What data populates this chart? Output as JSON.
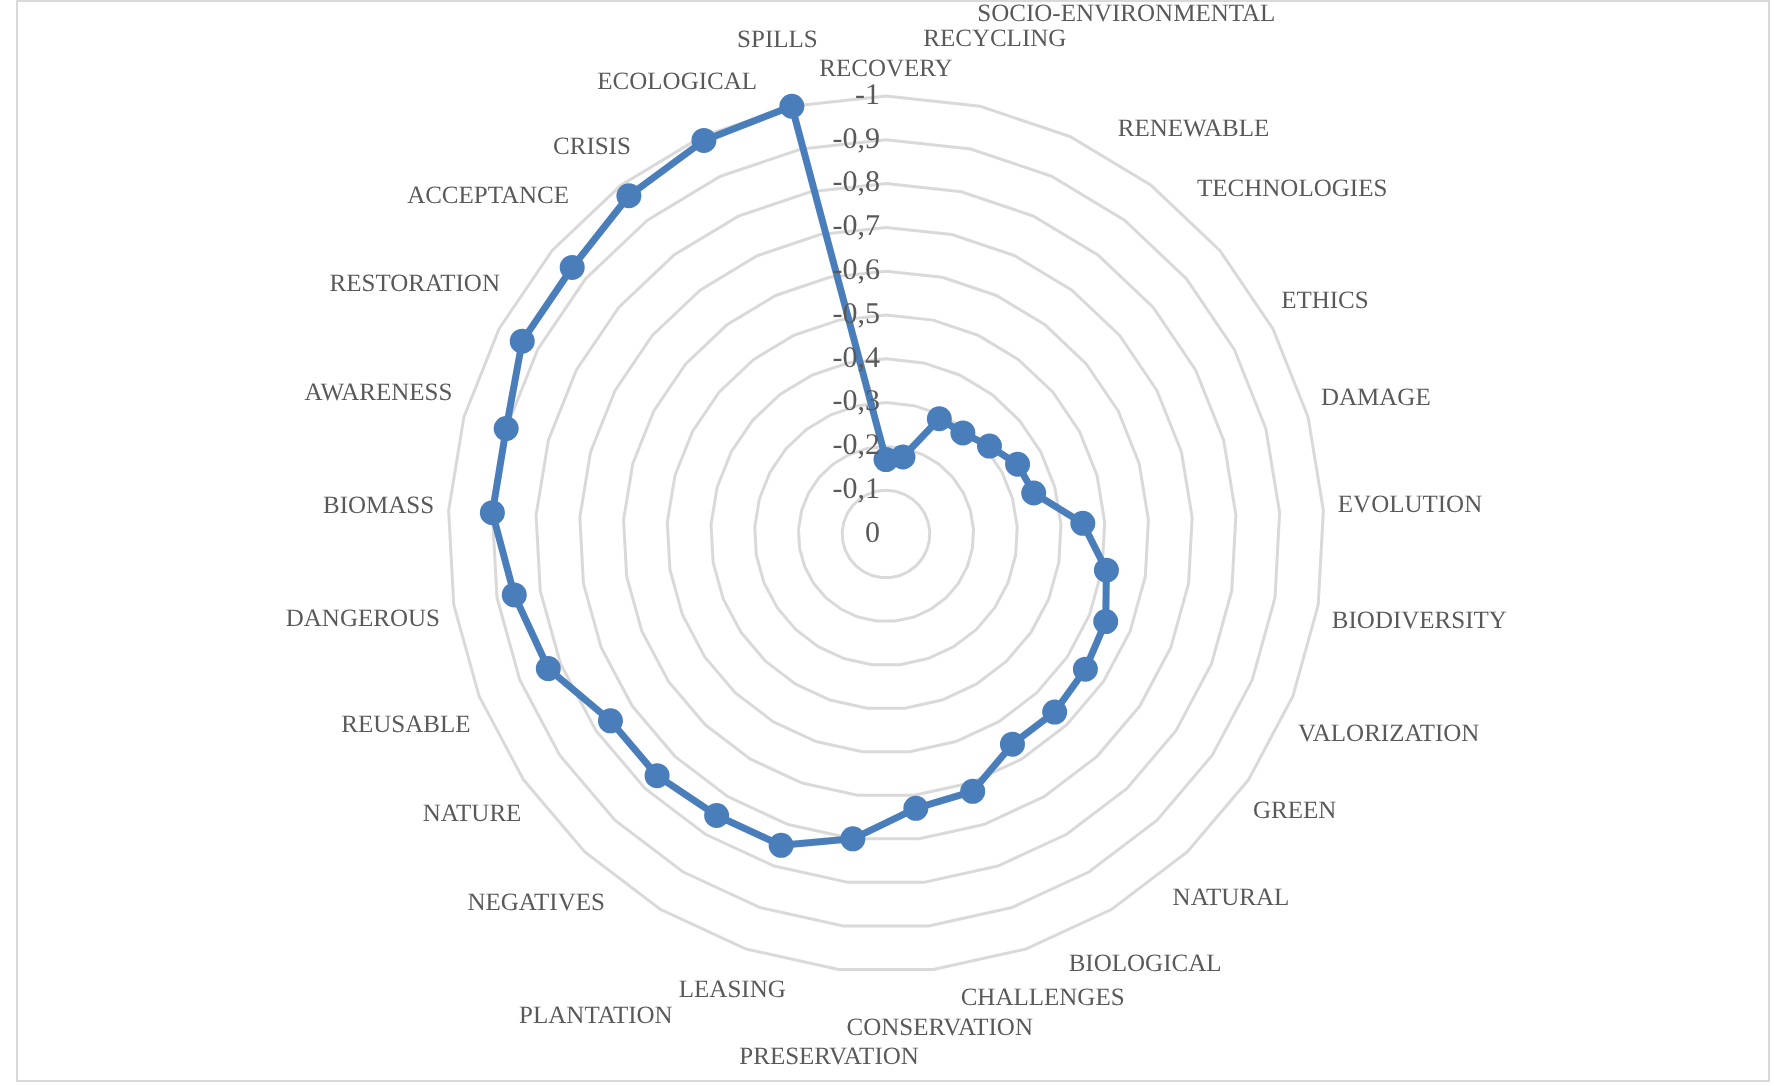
{
  "chart_data": {
    "type": "radar",
    "categories": [
      "RECOVERY",
      "RECYCLING",
      "SOCIO-ENVIRONMENTAL",
      "RENEWABLE",
      "TECHNOLOGIES",
      "ETHICS",
      "DAMAGE",
      "EVOLUTION",
      "BIODIVERSITY",
      "VALORIZATION",
      "GREEN",
      "NATURAL",
      "BIOLOGICAL",
      "CHALLENGES",
      "CONSERVATION",
      "PRESERVATION",
      "LEASING",
      "PLANTATION",
      "NEGATIVES",
      "NATURE",
      "REUSABLE",
      "DANGEROUS",
      "BIOMASS",
      "AWARENESS",
      "RESTORATION",
      "ACCEPTANCE",
      "CRISIS",
      "ECOLOGICAL",
      "SPILLS"
    ],
    "series": [
      {
        "color": "#4a7ebb",
        "values": [
          -0.17,
          -0.18,
          -0.29,
          -0.29,
          -0.31,
          -0.34,
          -0.35,
          -0.45,
          -0.51,
          -0.54,
          -0.55,
          -0.56,
          -0.56,
          -0.62,
          -0.63,
          -0.7,
          -0.75,
          -0.75,
          -0.76,
          -0.76,
          -0.83,
          -0.86,
          -0.9,
          -0.9,
          -0.94,
          -0.94,
          -0.97,
          -0.99,
          -1
        ]
      }
    ],
    "ylim": [
      0,
      -1
    ],
    "yticks": [
      0,
      {
        "value": -0.1,
        "label": "-0,1"
      },
      {
        "value": -0.2,
        "label": "-0,2"
      },
      {
        "value": -0.3,
        "label": "-0,3"
      },
      {
        "value": -0.4,
        "label": "-0,4"
      },
      {
        "value": -0.5,
        "label": "-0,5"
      },
      {
        "value": -0.6,
        "label": "-0,6"
      },
      {
        "value": -0.7,
        "label": "-0,7"
      },
      {
        "value": -0.8,
        "label": "-0,8"
      },
      {
        "value": -0.9,
        "label": "-0,9"
      },
      -1
    ],
    "grid": true,
    "legend": false,
    "marker": "circle",
    "line_style": "solid"
  }
}
